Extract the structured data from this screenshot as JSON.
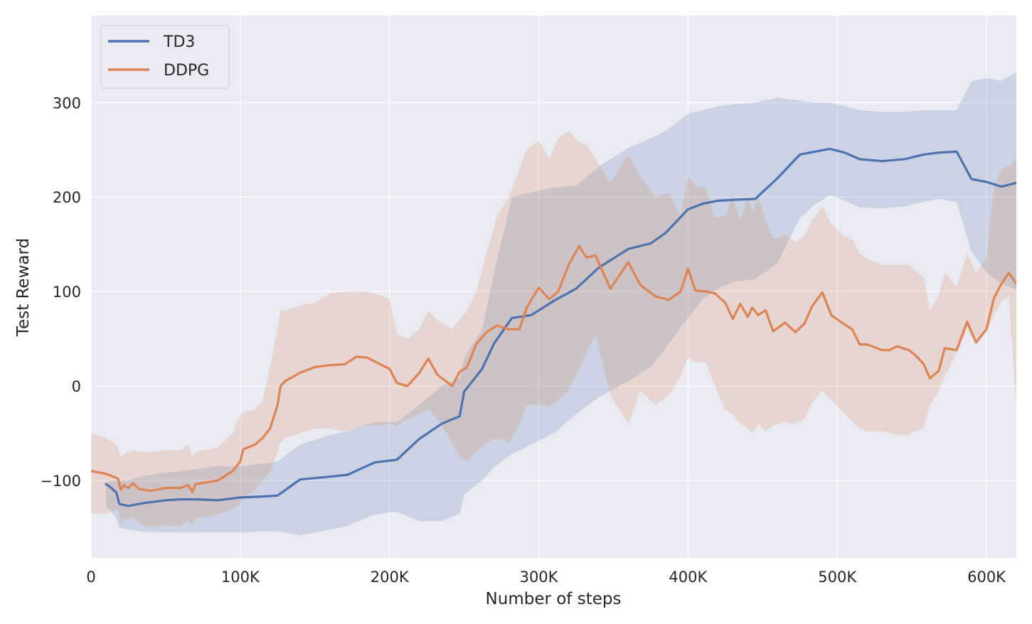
{
  "chart_data": {
    "type": "line",
    "title": "",
    "xlabel": "Number of steps",
    "ylabel": "Test Reward",
    "xlim": [
      0,
      620000
    ],
    "ylim": [
      -182,
      392
    ],
    "x_ticks": [
      0,
      100000,
      200000,
      300000,
      400000,
      500000,
      600000
    ],
    "x_tick_labels": [
      "0",
      "100K",
      "200K",
      "300K",
      "400K",
      "500K",
      "600K"
    ],
    "y_ticks": [
      -100,
      0,
      100,
      200,
      300
    ],
    "y_tick_labels": [
      "−100",
      "0",
      "100",
      "200",
      "300"
    ],
    "grid": true,
    "legend_position": "top-left",
    "background": "#eaeaf2",
    "series": [
      {
        "name": "TD3",
        "color": "#4c72b0",
        "x": [
          10000,
          13000,
          17000,
          19000,
          25000,
          35000,
          50000,
          60000,
          70000,
          85000,
          100000,
          115000,
          125000,
          140000,
          160000,
          172000,
          190000,
          205000,
          220000,
          235000,
          247000,
          250000,
          262000,
          270000,
          282000,
          295000,
          310000,
          325000,
          340000,
          360000,
          375000,
          385000,
          400000,
          410000,
          420000,
          430000,
          445000,
          460000,
          475000,
          485000,
          495000,
          505000,
          515000,
          530000,
          545000,
          558000,
          568000,
          580000,
          590000,
          600000,
          610000,
          620000
        ],
        "y": [
          -104,
          -107,
          -113,
          -125,
          -127,
          -124,
          -121,
          -120,
          -120,
          -121,
          -118,
          -117,
          -116,
          -99,
          -96,
          -94,
          -81,
          -78,
          -56,
          -40,
          -32,
          -6,
          18,
          45,
          72,
          75,
          90,
          103,
          125,
          145,
          151,
          162,
          187,
          193,
          196,
          197,
          198,
          220,
          245,
          248,
          251,
          247,
          240,
          238,
          240,
          245,
          247,
          248,
          219,
          216,
          211,
          215
        ],
        "upper": [
          -102,
          -100,
          -100,
          -100,
          -100,
          -95,
          -92,
          -90,
          -88,
          -85,
          -85,
          -82,
          -80,
          -62,
          -52,
          -48,
          -38,
          -38,
          -20,
          0,
          8,
          30,
          60,
          120,
          200,
          205,
          210,
          212,
          232,
          252,
          262,
          270,
          288,
          292,
          296,
          298,
          300,
          305,
          302,
          300,
          300,
          296,
          292,
          290,
          290,
          292,
          292,
          292,
          322,
          326,
          323,
          332
        ],
        "lower": [
          -128,
          -132,
          -140,
          -150,
          -152,
          -154,
          -155,
          -155,
          -155,
          -155,
          -155,
          -154,
          -154,
          -158,
          -152,
          -148,
          -136,
          -133,
          -143,
          -143,
          -135,
          -115,
          -100,
          -86,
          -72,
          -62,
          -50,
          -30,
          -12,
          5,
          20,
          40,
          72,
          92,
          103,
          110,
          113,
          130,
          178,
          192,
          202,
          196,
          189,
          188,
          190,
          195,
          198,
          195,
          142,
          120,
          108,
          102
        ]
      },
      {
        "name": "DDPG",
        "color": "#dd8452",
        "x": [
          0,
          10000,
          15000,
          18000,
          20000,
          22000,
          25000,
          28000,
          32000,
          40000,
          50000,
          60000,
          65000,
          68000,
          70000,
          85000,
          95000,
          100000,
          102000,
          110000,
          115000,
          120000,
          125000,
          127000,
          130000,
          140000,
          150000,
          160000,
          170000,
          178000,
          185000,
          195000,
          200000,
          205000,
          212000,
          220000,
          226000,
          232000,
          242000,
          247000,
          252000,
          258000,
          265000,
          272000,
          280000,
          287000,
          292000,
          300000,
          307000,
          313000,
          320000,
          327000,
          332000,
          338000,
          348000,
          360000,
          368000,
          378000,
          387000,
          395000,
          400000,
          405000,
          412000,
          418000,
          425000,
          430000,
          435000,
          440000,
          443000,
          447000,
          452000,
          457000,
          465000,
          472000,
          478000,
          483000,
          490000,
          496000,
          505000,
          510000,
          515000,
          520000,
          530000,
          535000,
          540000,
          548000,
          552000,
          558000,
          562000,
          568000,
          572000,
          580000,
          587000,
          593000,
          600000,
          605000,
          610000,
          615000,
          620000
        ],
        "y": [
          -90,
          -93,
          -96,
          -98,
          -110,
          -105,
          -108,
          -103,
          -109,
          -111,
          -108,
          -108,
          -105,
          -112,
          -104,
          -100,
          -90,
          -80,
          -67,
          -62,
          -55,
          -45,
          -20,
          0,
          5,
          14,
          20,
          22,
          23,
          31,
          30,
          22,
          18,
          3,
          0,
          14,
          29,
          12,
          0,
          15,
          20,
          44,
          57,
          64,
          60,
          60,
          83,
          104,
          92,
          100,
          128,
          148,
          136,
          138,
          103,
          131,
          107,
          95,
          91,
          100,
          124,
          101,
          100,
          98,
          88,
          71,
          87,
          73,
          83,
          75,
          80,
          58,
          67,
          57,
          66,
          84,
          99,
          75,
          65,
          60,
          44,
          44,
          38,
          38,
          42,
          38,
          33,
          23,
          8,
          16,
          40,
          38,
          68,
          46,
          60,
          93,
          108,
          120,
          108
        ],
        "upper": [
          -50,
          -55,
          -60,
          -65,
          -75,
          -72,
          -70,
          -68,
          -70,
          -70,
          -68,
          -68,
          -62,
          -75,
          -70,
          -65,
          -50,
          -30,
          -28,
          -25,
          -15,
          20,
          60,
          80,
          80,
          85,
          88,
          98,
          100,
          100,
          100,
          95,
          92,
          55,
          50,
          60,
          80,
          70,
          60,
          70,
          80,
          100,
          140,
          180,
          200,
          230,
          250,
          260,
          240,
          262,
          270,
          258,
          255,
          240,
          215,
          245,
          222,
          200,
          205,
          180,
          222,
          212,
          210,
          178,
          180,
          200,
          175,
          200,
          185,
          200,
          175,
          155,
          160,
          152,
          160,
          175,
          190,
          172,
          158,
          155,
          140,
          135,
          128,
          128,
          128,
          128,
          122,
          115,
          80,
          95,
          120,
          105,
          140,
          120,
          135,
          210,
          230,
          232,
          240
        ],
        "lower": [
          -135,
          -135,
          -132,
          -130,
          -145,
          -140,
          -142,
          -138,
          -145,
          -150,
          -148,
          -148,
          -142,
          -148,
          -140,
          -136,
          -130,
          -125,
          -118,
          -110,
          -100,
          -90,
          -70,
          -60,
          -55,
          -50,
          -45,
          -45,
          -48,
          -45,
          -42,
          -42,
          -40,
          -42,
          -35,
          -30,
          -25,
          -35,
          -60,
          -75,
          -80,
          -70,
          -60,
          -55,
          -60,
          -40,
          -20,
          -20,
          -22,
          -15,
          -5,
          18,
          35,
          55,
          -10,
          -40,
          -5,
          -20,
          -10,
          10,
          30,
          25,
          25,
          0,
          -25,
          -30,
          -40,
          -45,
          -50,
          -40,
          -48,
          -42,
          -38,
          -40,
          -35,
          -18,
          -5,
          -15,
          -30,
          -38,
          -45,
          -48,
          -48,
          -50,
          -52,
          -52,
          -48,
          -45,
          -20,
          -5,
          10,
          35,
          60,
          45,
          58,
          75,
          90,
          95,
          -20
        ]
      }
    ]
  }
}
